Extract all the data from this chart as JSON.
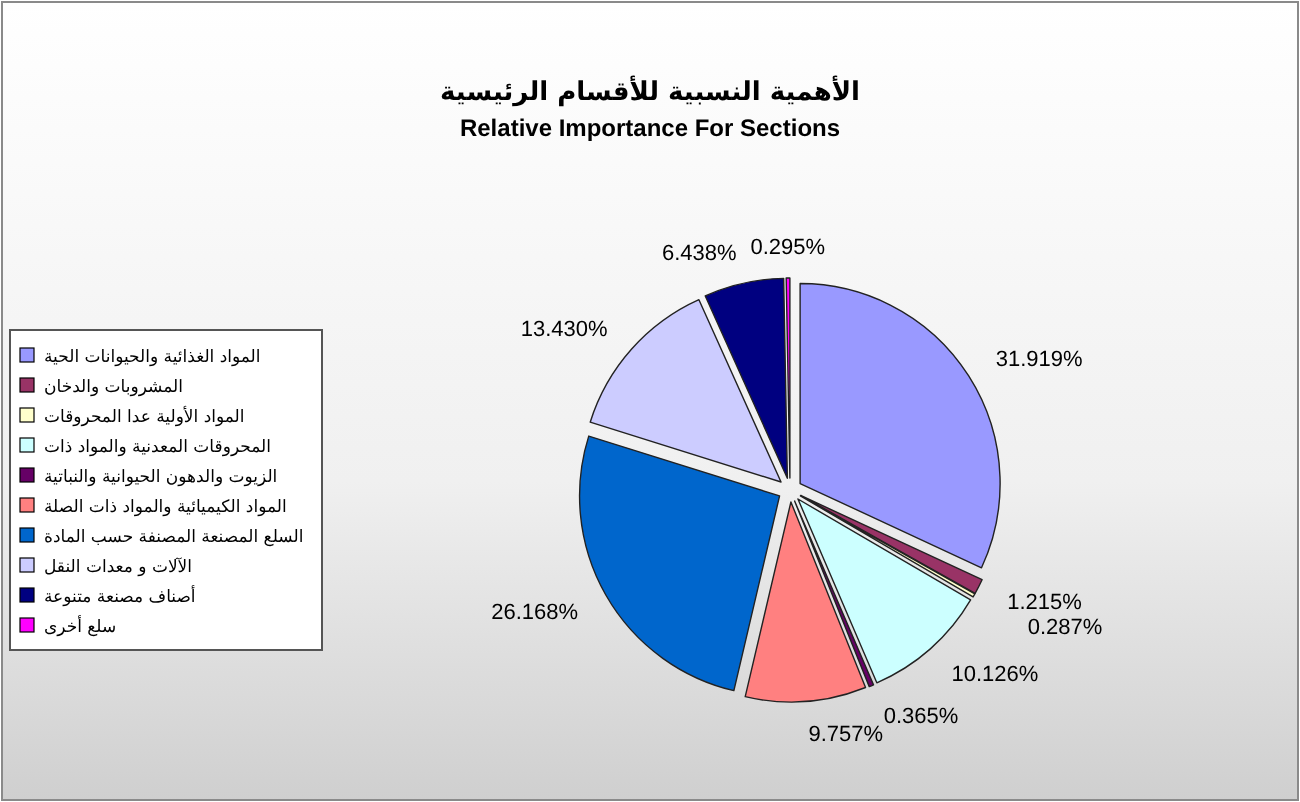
{
  "chart_data": {
    "type": "pie",
    "title": "الأهمية النسبية للأقسام الرئيسية",
    "subtitle": "Relative Importance For Sections",
    "categories": [
      "المواد الغذائية والحيوانات الحية",
      "المشروبات والدخان",
      "المواد الأولية عدا المحروقات",
      "المحروقات المعدنية والمواد ذات",
      "الزيوت والدهون الحيوانية والنباتية",
      "المواد الكيميائية والمواد ذات الصلة",
      "السلع المصنعة المصنفة حسب المادة",
      "الآلات و معدات النقل",
      "أصناف مصنعة متنوعة",
      "سلع أخرى"
    ],
    "values": [
      31.919,
      1.215,
      0.287,
      10.126,
      0.365,
      9.757,
      26.168,
      13.43,
      6.438,
      0.295
    ],
    "colors": [
      "#9999ff",
      "#993366",
      "#ffffcc",
      "#ccffff",
      "#660066",
      "#ff8080",
      "#0066cc",
      "#ccccff",
      "#000080",
      "#ff00ff"
    ],
    "value_labels": [
      "31.919%",
      "1.215%",
      "0.287%",
      "10.126%",
      "0.365%",
      "9.757%",
      "26.168%",
      "13.430%",
      "6.438%",
      "0.295%"
    ],
    "legend": "left"
  }
}
